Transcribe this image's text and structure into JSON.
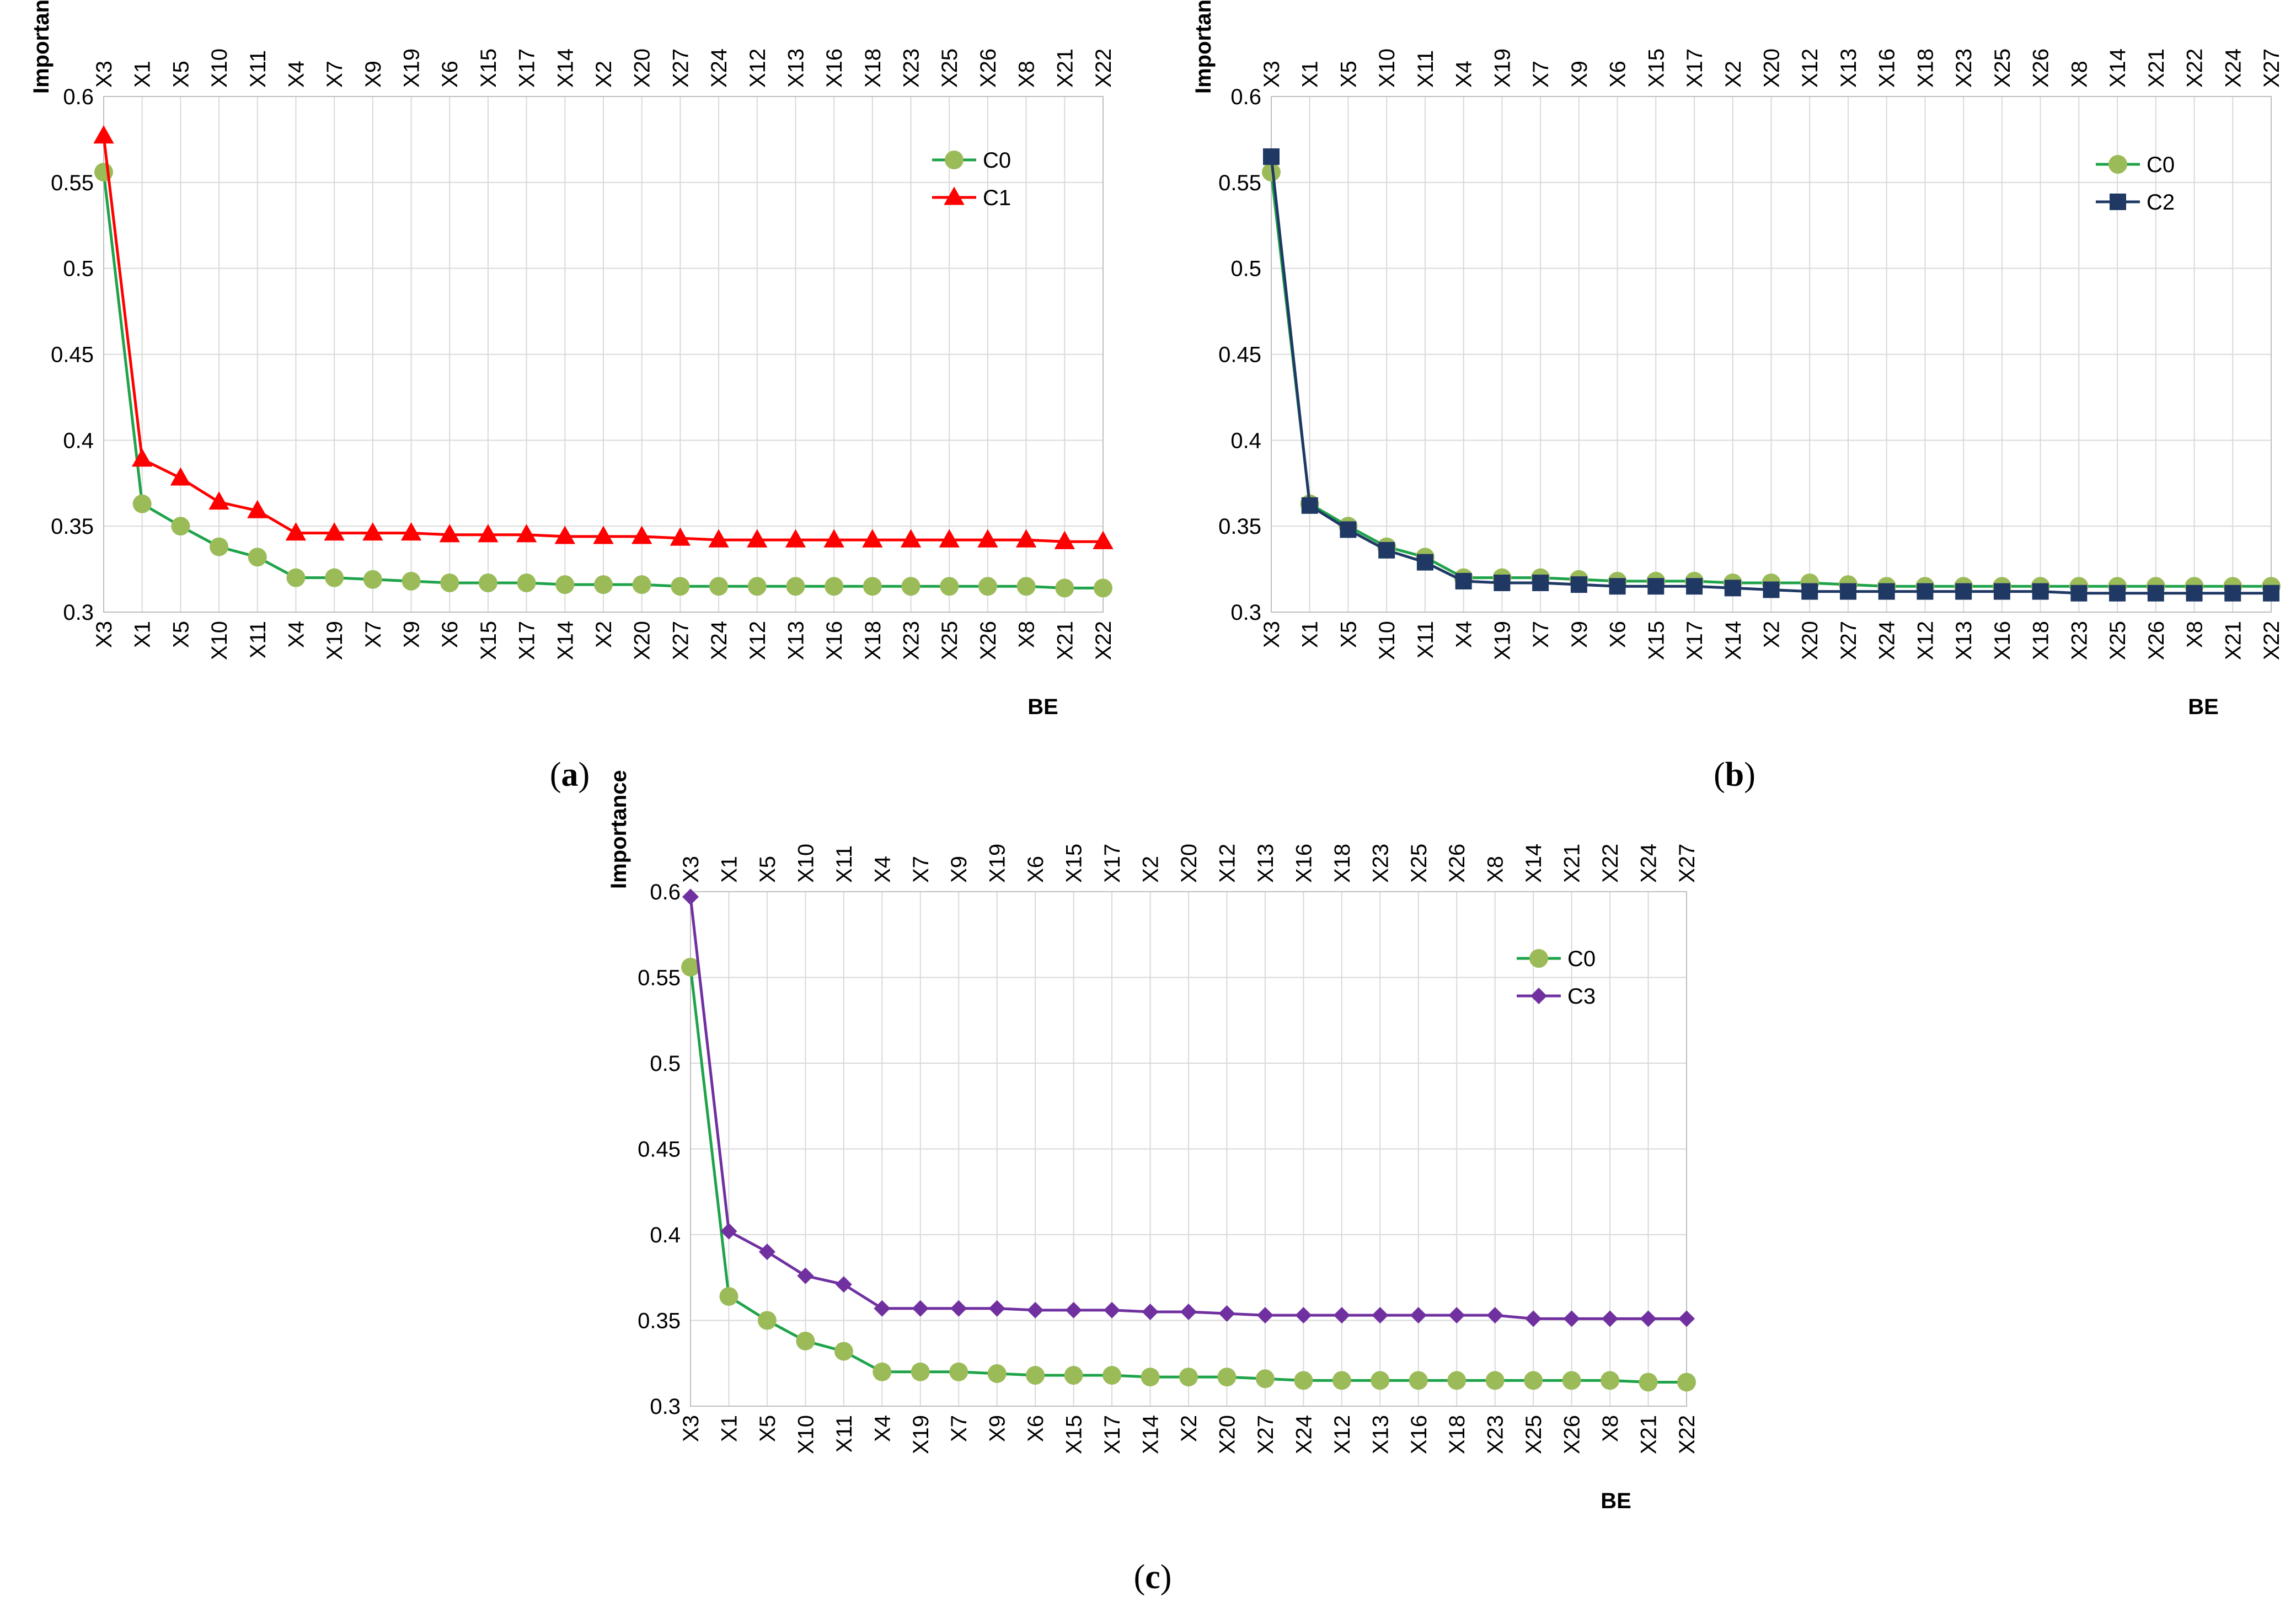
{
  "chart_data": [
    {
      "type": "line",
      "caption": "a",
      "xlabel": "BE",
      "ylabel": "Importance",
      "ylim": [
        0.3,
        0.6
      ],
      "yticks": [
        "0.3",
        "0.35",
        "0.4",
        "0.45",
        "0.5",
        "0.55",
        "0.6"
      ],
      "grid": true,
      "legend_position": "top-right",
      "top_categories": [
        "X3",
        "X1",
        "X5",
        "X10",
        "X11",
        "X4",
        "X7",
        "X9",
        "X19",
        "X6",
        "X15",
        "X17",
        "X14",
        "X2",
        "X20",
        "X27",
        "X24",
        "X12",
        "X13",
        "X16",
        "X18",
        "X23",
        "X25",
        "X26",
        "X8",
        "X21",
        "X22"
      ],
      "bottom_categories": [
        "X3",
        "X1",
        "X5",
        "X10",
        "X11",
        "X4",
        "X19",
        "X7",
        "X9",
        "X6",
        "X15",
        "X17",
        "X14",
        "X2",
        "X20",
        "X27",
        "X24",
        "X12",
        "X13",
        "X16",
        "X18",
        "X23",
        "X25",
        "X26",
        "X8",
        "X21",
        "X22"
      ],
      "series": [
        {
          "name": "C0",
          "color": "#9bbb59",
          "line_color": "#1fa34a",
          "marker": "circle",
          "values": [
            0.556,
            0.363,
            0.35,
            0.338,
            0.332,
            0.32,
            0.32,
            0.319,
            0.318,
            0.317,
            0.317,
            0.317,
            0.316,
            0.316,
            0.316,
            0.315,
            0.315,
            0.315,
            0.315,
            0.315,
            0.315,
            0.315,
            0.315,
            0.315,
            0.315,
            0.314,
            0.314
          ]
        },
        {
          "name": "C1",
          "color": "#ff0000",
          "line_color": "#ff0000",
          "marker": "triangle",
          "values": [
            0.577,
            0.389,
            0.378,
            0.364,
            0.359,
            0.346,
            0.346,
            0.346,
            0.346,
            0.345,
            0.345,
            0.345,
            0.344,
            0.344,
            0.344,
            0.343,
            0.342,
            0.342,
            0.342,
            0.342,
            0.342,
            0.342,
            0.342,
            0.342,
            0.342,
            0.341,
            0.341
          ]
        }
      ]
    },
    {
      "type": "line",
      "caption": "b",
      "xlabel": "BE",
      "ylabel": "Importance",
      "ylim": [
        0.3,
        0.6
      ],
      "yticks": [
        "0.3",
        "0.35",
        "0.4",
        "0.45",
        "0.5",
        "0.55",
        "0.6"
      ],
      "grid": true,
      "legend_position": "top-right",
      "top_categories": [
        "X3",
        "X1",
        "X5",
        "X10",
        "X11",
        "X4",
        "X19",
        "X7",
        "X9",
        "X6",
        "X15",
        "X17",
        "X2",
        "X20",
        "X12",
        "X13",
        "X16",
        "X18",
        "X23",
        "X25",
        "X26",
        "X8",
        "X14",
        "X21",
        "X22",
        "X24",
        "X27"
      ],
      "bottom_categories": [
        "X3",
        "X1",
        "X5",
        "X10",
        "X11",
        "X4",
        "X19",
        "X7",
        "X9",
        "X6",
        "X15",
        "X17",
        "X14",
        "X2",
        "X20",
        "X27",
        "X24",
        "X12",
        "X13",
        "X16",
        "X18",
        "X23",
        "X25",
        "X26",
        "X8",
        "X21",
        "X22"
      ],
      "series": [
        {
          "name": "C0",
          "color": "#9bbb59",
          "line_color": "#1fa34a",
          "marker": "circle",
          "values": [
            0.556,
            0.363,
            0.35,
            0.338,
            0.332,
            0.32,
            0.32,
            0.32,
            0.319,
            0.318,
            0.318,
            0.318,
            0.317,
            0.317,
            0.317,
            0.316,
            0.315,
            0.315,
            0.315,
            0.315,
            0.315,
            0.315,
            0.315,
            0.315,
            0.315,
            0.315,
            0.315
          ]
        },
        {
          "name": "C2",
          "color": "#1f3864",
          "line_color": "#1f3864",
          "marker": "square",
          "values": [
            0.565,
            0.362,
            0.348,
            0.336,
            0.329,
            0.318,
            0.317,
            0.317,
            0.316,
            0.315,
            0.315,
            0.315,
            0.314,
            0.313,
            0.312,
            0.312,
            0.312,
            0.312,
            0.312,
            0.312,
            0.312,
            0.311,
            0.311,
            0.311,
            0.311,
            0.311,
            0.311
          ]
        }
      ]
    },
    {
      "type": "line",
      "caption": "c",
      "xlabel": "BE",
      "ylabel": "Importance",
      "ylim": [
        0.3,
        0.6
      ],
      "yticks": [
        "0.3",
        "0.35",
        "0.4",
        "0.45",
        "0.5",
        "0.55",
        "0.6"
      ],
      "grid": true,
      "legend_position": "top-right",
      "top_categories": [
        "X3",
        "X1",
        "X5",
        "X10",
        "X11",
        "X4",
        "X7",
        "X9",
        "X19",
        "X6",
        "X15",
        "X17",
        "X2",
        "X20",
        "X12",
        "X13",
        "X16",
        "X18",
        "X23",
        "X25",
        "X26",
        "X8",
        "X14",
        "X21",
        "X22",
        "X24",
        "X27"
      ],
      "bottom_categories": [
        "X3",
        "X1",
        "X5",
        "X10",
        "X11",
        "X4",
        "X19",
        "X7",
        "X9",
        "X6",
        "X15",
        "X17",
        "X14",
        "X2",
        "X20",
        "X27",
        "X24",
        "X12",
        "X13",
        "X16",
        "X18",
        "X23",
        "X25",
        "X26",
        "X8",
        "X21",
        "X22"
      ],
      "series": [
        {
          "name": "C0",
          "color": "#9bbb59",
          "line_color": "#1fa34a",
          "marker": "circle",
          "values": [
            0.556,
            0.364,
            0.35,
            0.338,
            0.332,
            0.32,
            0.32,
            0.32,
            0.319,
            0.318,
            0.318,
            0.318,
            0.317,
            0.317,
            0.317,
            0.316,
            0.315,
            0.315,
            0.315,
            0.315,
            0.315,
            0.315,
            0.315,
            0.315,
            0.315,
            0.314,
            0.314
          ]
        },
        {
          "name": "C3",
          "color": "#7030a0",
          "line_color": "#7030a0",
          "marker": "diamond",
          "values": [
            0.597,
            0.402,
            0.39,
            0.376,
            0.371,
            0.357,
            0.357,
            0.357,
            0.357,
            0.356,
            0.356,
            0.356,
            0.355,
            0.355,
            0.354,
            0.353,
            0.353,
            0.353,
            0.353,
            0.353,
            0.353,
            0.353,
            0.351,
            0.351,
            0.351,
            0.351,
            0.351
          ]
        }
      ]
    }
  ]
}
